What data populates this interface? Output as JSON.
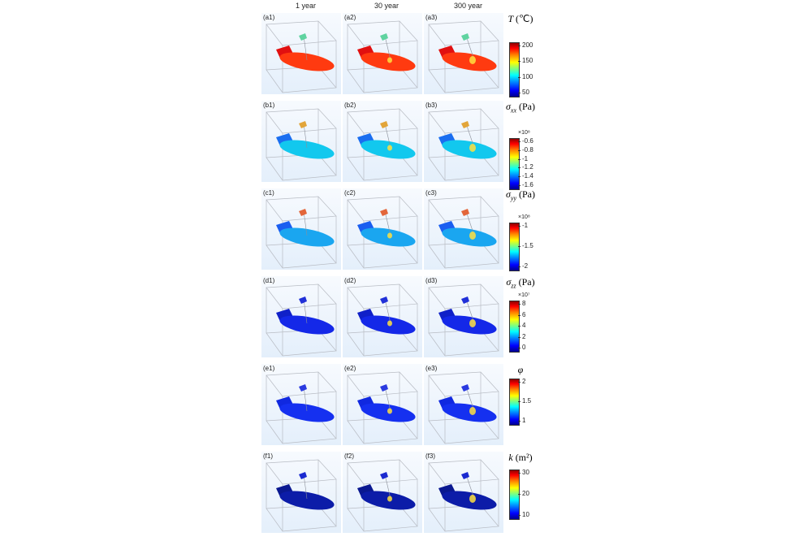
{
  "columns": [
    "1 year",
    "30 year",
    "300 year"
  ],
  "rows": [
    {
      "title_symbol": "T",
      "title_sub": "",
      "title_unit": "(℃)",
      "multiplier": "",
      "ticks": [
        "200",
        "150",
        "100",
        "50"
      ],
      "labels": [
        "(a1)",
        "(a2)",
        "(a3)"
      ],
      "disc_colors": [
        "#ff3a10",
        "#ff3a10",
        "#ff3a10"
      ],
      "tab_color": "#e11010",
      "crack_color": "#5fd3a0",
      "hotspot": [
        0,
        1,
        2
      ]
    },
    {
      "title_symbol": "σ",
      "title_sub": "xx",
      "title_unit": "(Pa)",
      "multiplier": "×10⁸",
      "ticks": [
        "-0.6",
        "-0.8",
        "-1",
        "-1.2",
        "-1.4",
        "-1.6"
      ],
      "labels": [
        "(b1)",
        "(b2)",
        "(b3)"
      ],
      "disc_colors": [
        "#12c8ee",
        "#12c8ee",
        "#12c8ee"
      ],
      "tab_color": "#1a6ef0",
      "crack_color": "#e2a53a",
      "hotspot": [
        0,
        1,
        2
      ]
    },
    {
      "title_symbol": "σ",
      "title_sub": "yy",
      "title_unit": "(Pa)",
      "multiplier": "×10⁸",
      "ticks": [
        "-1",
        "-1.5",
        "-2"
      ],
      "labels": [
        "(c1)",
        "(c2)",
        "(c3)"
      ],
      "disc_colors": [
        "#1aa6f0",
        "#1aa6f0",
        "#1aa6f0"
      ],
      "tab_color": "#1a5ef0",
      "crack_color": "#e3663a",
      "hotspot": [
        0,
        1,
        2
      ]
    },
    {
      "title_symbol": "σ",
      "title_sub": "zz",
      "title_unit": "(Pa)",
      "multiplier": "×10⁷",
      "ticks": [
        "8",
        "6",
        "4",
        "2",
        "0"
      ],
      "labels": [
        "(d1)",
        "(d2)",
        "(d3)"
      ],
      "disc_colors": [
        "#1428e8",
        "#1428e8",
        "#1428e8"
      ],
      "tab_color": "#1020c8",
      "crack_color": "#2030d8",
      "hotspot": [
        0,
        1,
        2
      ]
    },
    {
      "title_symbol": "φ",
      "title_sub": "",
      "title_unit": "",
      "multiplier": "",
      "ticks": [
        "2",
        "1.5",
        "1"
      ],
      "labels": [
        "(e1)",
        "(e2)",
        "(e3)"
      ],
      "disc_colors": [
        "#1530f0",
        "#1530f0",
        "#1530f0"
      ],
      "tab_color": "#1028e0",
      "crack_color": "#2a3ae0",
      "hotspot": [
        0,
        1,
        2
      ]
    },
    {
      "title_symbol": "k",
      "title_sub": "",
      "title_unit": "(m²)",
      "multiplier": "",
      "ticks": [
        "30",
        "20",
        "10"
      ],
      "labels": [
        "(f1)",
        "(f2)",
        "(f3)"
      ],
      "disc_colors": [
        "#0c1ca8",
        "#0c1ca8",
        "#0c1ca8"
      ],
      "tab_color": "#0a1890",
      "crack_color": "#1a2ad0",
      "hotspot": [
        0,
        1,
        2
      ]
    }
  ]
}
